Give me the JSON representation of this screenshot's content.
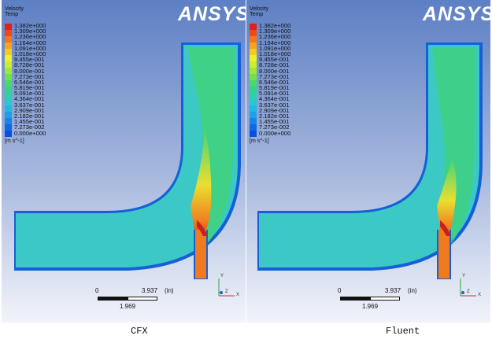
{
  "panels": [
    {
      "legend_title_1": "Velocity",
      "legend_title_2": "Temp",
      "legend_values": [
        "1.382e+000",
        "1.309e+000",
        "1.236e+000",
        "1.164e+000",
        "1.091e+000",
        "1.018e+000",
        "9.455e-001",
        "8.728e-001",
        "8.000e-001",
        "7.273e-001",
        "6.546e-001",
        "5.819e-001",
        "5.091e-001",
        "4.364e-001",
        "3.637e-001",
        "2.909e-001",
        "2.182e-001",
        "1.455e-001",
        "7.273e-002",
        "0.000e+000"
      ],
      "legend_colors": [
        "#e0201c",
        "#f04a14",
        "#f5751a",
        "#f8a21e",
        "#f5c923",
        "#eef02a",
        "#c9f02c",
        "#9ee83a",
        "#72e04e",
        "#4bd866",
        "#33d48a",
        "#2cd0ad",
        "#28c8cc",
        "#24b8e0",
        "#1ea0e8",
        "#1884e8",
        "#1268e4",
        "#0c4ee0",
        "#0834d8",
        "#0a1ec8"
      ],
      "units": "[m s^-1]",
      "logo": "ANSYS",
      "scale_zero": "0",
      "scale_max": "3.937",
      "scale_unit": "(in)",
      "scale_mid": "1.969",
      "axis_y": "Y",
      "axis_x": "X",
      "axis_z": "Z"
    },
    {
      "legend_title_1": "Velocity",
      "legend_title_2": "Temp",
      "legend_values": [
        "1.382e+000",
        "1.309e+000",
        "1.236e+000",
        "1.164e+000",
        "1.091e+000",
        "1.018e+000",
        "9.455e-001",
        "8.728e-001",
        "8.000e-001",
        "7.273e-001",
        "6.546e-001",
        "5.819e-001",
        "5.091e-001",
        "4.364e-001",
        "3.637e-001",
        "2.909e-001",
        "2.182e-001",
        "1.455e-001",
        "7.273e-002",
        "0.000e+000"
      ],
      "legend_colors": [
        "#e0201c",
        "#f04a14",
        "#f5751a",
        "#f8a21e",
        "#f5c923",
        "#eef02a",
        "#c9f02c",
        "#9ee83a",
        "#72e04e",
        "#4bd866",
        "#33d48a",
        "#2cd0ad",
        "#28c8cc",
        "#24b8e0",
        "#1ea0e8",
        "#1884e8",
        "#1268e4",
        "#0c4ee0",
        "#0834d8",
        "#0a1ec8"
      ],
      "units": "[m s^-1]",
      "logo": "ANSYS",
      "scale_zero": "0",
      "scale_max": "3.937",
      "scale_unit": "(in)",
      "scale_mid": "1.969",
      "axis_y": "Y",
      "axis_x": "X",
      "axis_z": "Z"
    }
  ],
  "captions": {
    "left": "CFX",
    "right": "Fluent"
  },
  "colors": {
    "flow_base": "#3cc9c6",
    "flow_green": "#3fd27a",
    "wall": "#1560d8",
    "jet_core": "#e24f1c"
  }
}
